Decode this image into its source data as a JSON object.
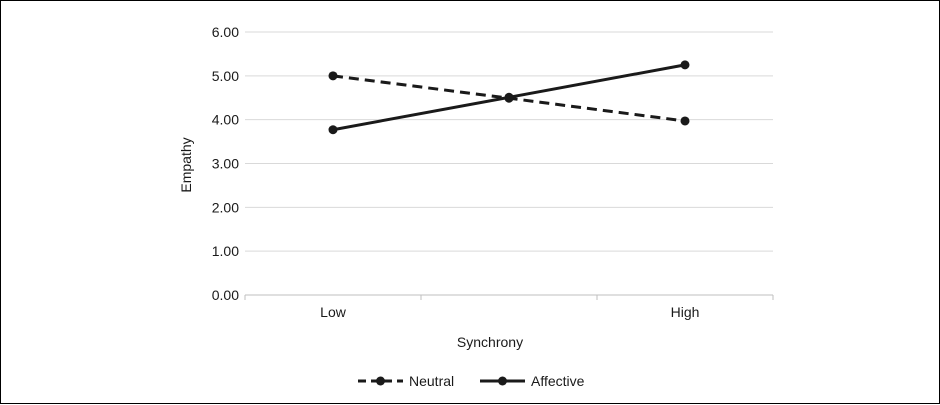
{
  "chart_data": {
    "type": "line",
    "categories": [
      "Low",
      "",
      "High"
    ],
    "x_tick_labels": [
      "Low",
      "High"
    ],
    "series": [
      {
        "name": "Neutral",
        "values": [
          5.0,
          4.49,
          3.97
        ],
        "style": "dashed",
        "color": "#1a1a1a"
      },
      {
        "name": "Affective",
        "values": [
          3.77,
          4.51,
          5.25
        ],
        "style": "solid",
        "color": "#1a1a1a"
      }
    ],
    "xlabel": "Synchrony",
    "ylabel": "Empathy",
    "ylim": [
      0,
      6
    ],
    "y_ticks": [
      "0.00",
      "1.00",
      "2.00",
      "3.00",
      "4.00",
      "5.00",
      "6.00"
    ],
    "grid": "horizontal",
    "legend_position": "bottom"
  }
}
